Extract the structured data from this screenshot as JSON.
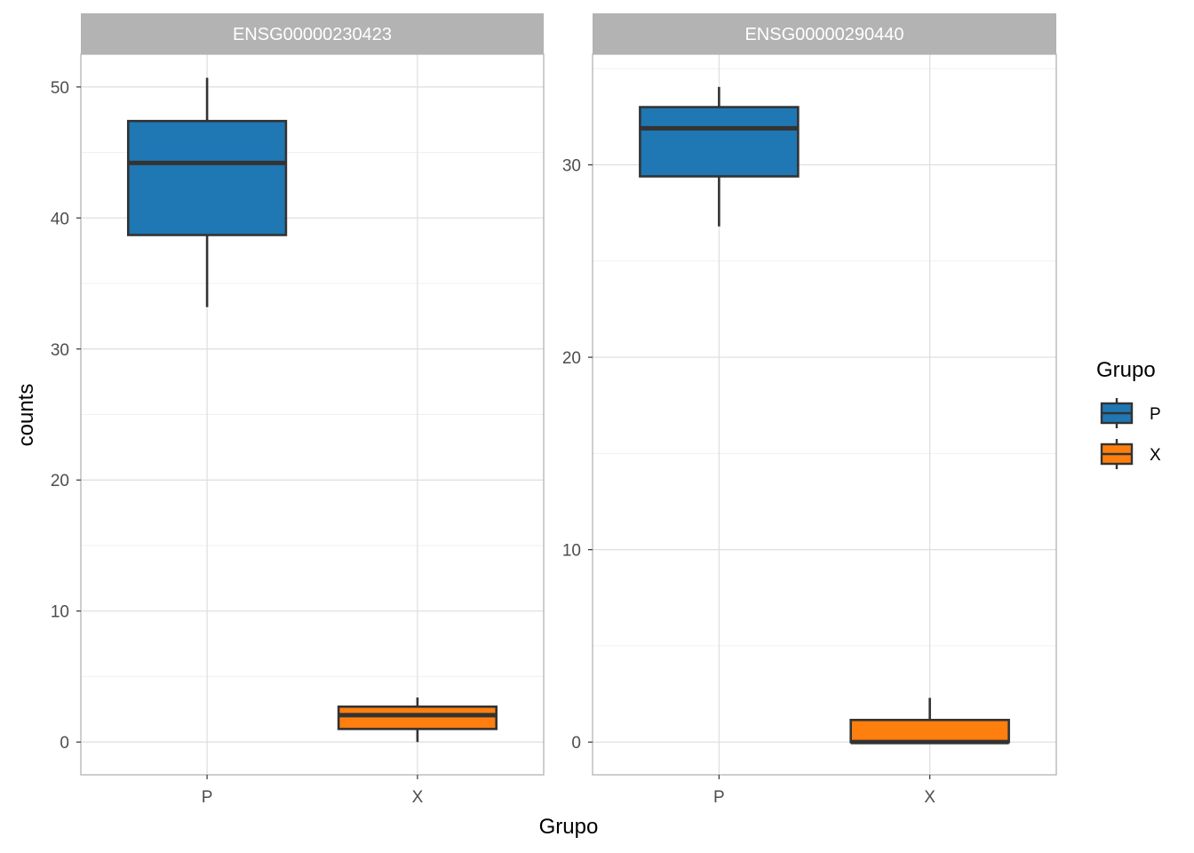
{
  "chart_data": {
    "type": "boxplot",
    "title": "",
    "xlabel": "Grupo",
    "ylabel": "counts",
    "grid": true,
    "legend": {
      "title": "Grupo",
      "position": "right",
      "entries": [
        {
          "label": "P",
          "color": "#1F77B4"
        },
        {
          "label": "X",
          "color": "#FF7F0E"
        }
      ]
    },
    "colors": {
      "P": "#1F77B4",
      "X": "#FF7F0E",
      "box_outline": "#333333",
      "strip_bg": "#B3B3B3",
      "panel_border": "#B3B3B3",
      "grid_major": "#DEDEDE",
      "grid_minor": "#F0F0F0"
    },
    "categories": [
      "P",
      "X"
    ],
    "panels": [
      {
        "strip": "ENSG00000230423",
        "ylim": [
          -2.5,
          52.5
        ],
        "yticks": [
          0,
          10,
          20,
          30,
          40,
          50
        ],
        "yticklabels": [
          "0",
          "10",
          "20",
          "30",
          "40",
          "50"
        ],
        "boxes": [
          {
            "group": "P",
            "whisker_low": 33.2,
            "q1": 38.7,
            "median": 44.2,
            "q3": 47.4,
            "whisker_high": 50.7
          },
          {
            "group": "X",
            "whisker_low": 0.0,
            "q1": 1.0,
            "median": 2.05,
            "q3": 2.7,
            "whisker_high": 3.4
          }
        ]
      },
      {
        "strip": "ENSG00000290440",
        "ylim": [
          -1.7,
          35.75
        ],
        "yticks": [
          0,
          10,
          20,
          30
        ],
        "yticklabels": [
          "0",
          "10",
          "20",
          "30"
        ],
        "boxes": [
          {
            "group": "P",
            "whisker_low": 26.8,
            "q1": 29.4,
            "median": 31.9,
            "q3": 33.0,
            "whisker_high": 34.05
          },
          {
            "group": "X",
            "whisker_low": 0.0,
            "q1": 0.0,
            "median": 0.0,
            "q3": 1.15,
            "whisker_high": 2.3
          }
        ]
      }
    ]
  }
}
